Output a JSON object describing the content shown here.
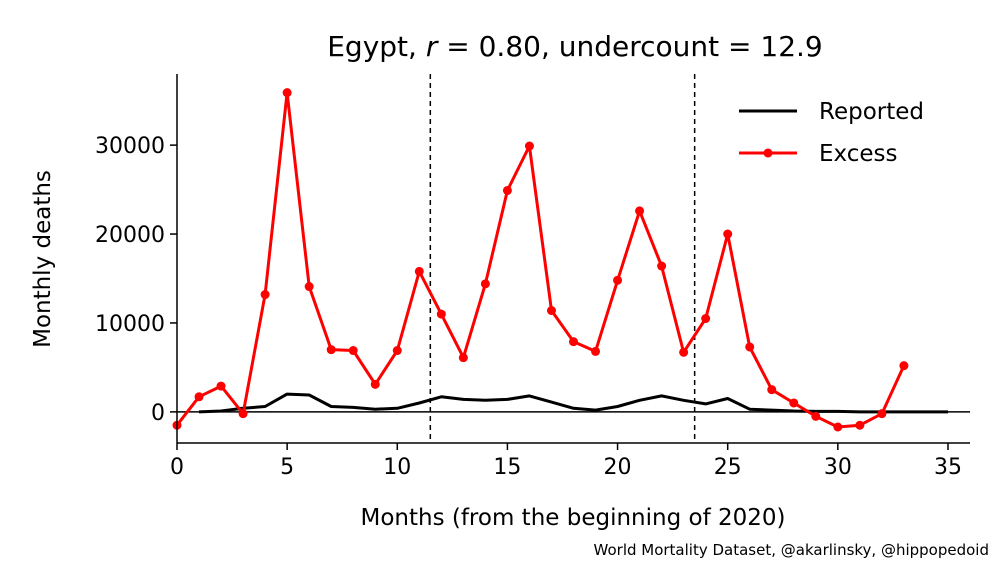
{
  "chart_data": {
    "type": "line",
    "title_prefix": "Egypt, ",
    "title_r_symbol": "r",
    "title_r_rest": " = 0.80, undercount = 12.9",
    "xlabel": "Months (from the beginning of 2020)",
    "ylabel": "Monthly deaths",
    "credit": "World Mortality Dataset, @akarlinsky, @hippopedoid",
    "xlim": [
      0,
      36
    ],
    "ylim": [
      -3500,
      38000
    ],
    "xticks": [
      0,
      5,
      10,
      15,
      20,
      25,
      30,
      35
    ],
    "yticks": [
      0,
      10000,
      20000,
      30000
    ],
    "grid": false,
    "legend_position": "top-right",
    "vlines": [
      11.5,
      23.5
    ],
    "zero_line": true,
    "series": [
      {
        "name": "Reported",
        "color": "#000000",
        "markers": false,
        "x": [
          1,
          2,
          3,
          4,
          5,
          6,
          7,
          8,
          9,
          10,
          11,
          12,
          13,
          14,
          15,
          16,
          17,
          18,
          19,
          20,
          21,
          22,
          23,
          24,
          25,
          26,
          27,
          28,
          29,
          30,
          31,
          32,
          33,
          34,
          35
        ],
        "y": [
          0,
          100,
          400,
          600,
          2000,
          1900,
          600,
          500,
          300,
          400,
          1000,
          1700,
          1400,
          1300,
          1400,
          1800,
          1100,
          400,
          200,
          600,
          1300,
          1800,
          1300,
          900,
          1500,
          300,
          200,
          100,
          50,
          50,
          0,
          0,
          0,
          0,
          0
        ]
      },
      {
        "name": "Excess",
        "color": "#ff0000",
        "markers": true,
        "x": [
          0,
          1,
          2,
          3,
          4,
          5,
          6,
          7,
          8,
          9,
          10,
          11,
          12,
          13,
          14,
          15,
          16,
          17,
          18,
          19,
          20,
          21,
          22,
          23,
          24,
          25,
          26,
          27,
          28,
          29,
          30,
          31,
          32,
          33
        ],
        "y": [
          -1500,
          1700,
          2900,
          -200,
          13200,
          35900,
          14100,
          7000,
          6900,
          3100,
          6900,
          15800,
          11000,
          6100,
          14400,
          24900,
          29900,
          11400,
          7900,
          6800,
          14800,
          22600,
          16400,
          6700,
          10500,
          20000,
          7300,
          2500,
          1000,
          -500,
          -1700,
          -1500,
          -200,
          5200
        ]
      }
    ]
  }
}
